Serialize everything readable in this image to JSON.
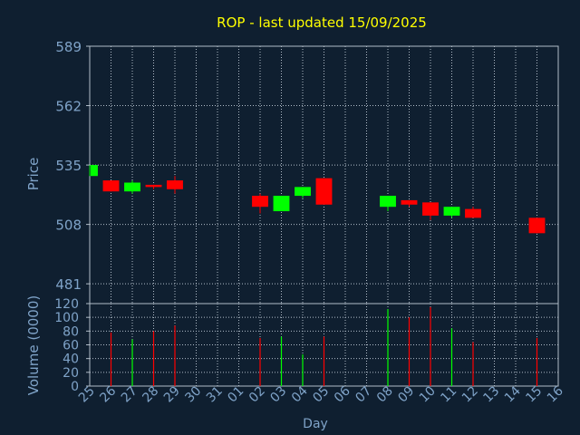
{
  "chart_data": [
    {
      "type": "candlestick",
      "title": "ROP - last updated 15/09/2025",
      "ylabel": "Price",
      "yticks": [
        481,
        508,
        535,
        562,
        589
      ],
      "ylim": [
        472,
        589
      ],
      "x": [
        "25",
        "26",
        "27",
        "28",
        "29",
        "30",
        "31",
        "01",
        "02",
        "03",
        "04",
        "05",
        "06",
        "07",
        "08",
        "09",
        "10",
        "11",
        "12",
        "13",
        "14",
        "15",
        "16"
      ],
      "candles": [
        {
          "x": "25",
          "open": 530,
          "close": 535,
          "high": 535,
          "low": 530
        },
        {
          "x": "26",
          "open": 528,
          "close": 523,
          "high": 528,
          "low": 523
        },
        {
          "x": "27",
          "open": 523,
          "close": 527,
          "high": 528,
          "low": 522
        },
        {
          "x": "28",
          "open": 526,
          "close": 525,
          "high": 526,
          "low": 524
        },
        {
          "x": "29",
          "open": 528,
          "close": 524,
          "high": 530,
          "low": 522
        },
        {
          "x": "02",
          "open": 521,
          "close": 516,
          "high": 522,
          "low": 513
        },
        {
          "x": "03",
          "open": 514,
          "close": 521,
          "high": 521,
          "low": 514
        },
        {
          "x": "04",
          "open": 521,
          "close": 525,
          "high": 525,
          "low": 520
        },
        {
          "x": "05",
          "open": 529,
          "close": 517,
          "high": 529,
          "low": 517
        },
        {
          "x": "08",
          "open": 516,
          "close": 521,
          "high": 521,
          "low": 514
        },
        {
          "x": "09",
          "open": 519,
          "close": 517,
          "high": 519,
          "low": 516
        },
        {
          "x": "10",
          "open": 518,
          "close": 512,
          "high": 518,
          "low": 510
        },
        {
          "x": "11",
          "open": 512,
          "close": 516,
          "high": 516,
          "low": 511
        },
        {
          "x": "12",
          "open": 515,
          "close": 511,
          "high": 516,
          "low": 511
        },
        {
          "x": "15",
          "open": 511,
          "close": 504,
          "high": 511,
          "low": 504
        }
      ]
    },
    {
      "type": "bar",
      "xlabel": "Day",
      "ylabel": "Volume (0000)",
      "yticks": [
        0,
        20,
        40,
        60,
        80,
        100,
        120
      ],
      "ylim": [
        0,
        120
      ],
      "categories": [
        "25",
        "26",
        "27",
        "28",
        "29",
        "30",
        "31",
        "01",
        "02",
        "03",
        "04",
        "05",
        "06",
        "07",
        "08",
        "09",
        "10",
        "11",
        "12",
        "13",
        "14",
        "15",
        "16"
      ],
      "bars": [
        {
          "x": "26",
          "value": 78,
          "color": "#ff0000"
        },
        {
          "x": "27",
          "value": 68,
          "color": "#00ff00"
        },
        {
          "x": "28",
          "value": 80,
          "color": "#ff0000"
        },
        {
          "x": "29",
          "value": 88,
          "color": "#ff0000"
        },
        {
          "x": "02",
          "value": 70,
          "color": "#ff0000"
        },
        {
          "x": "03",
          "value": 72,
          "color": "#00ff00"
        },
        {
          "x": "04",
          "value": 46,
          "color": "#00ff00"
        },
        {
          "x": "05",
          "value": 72,
          "color": "#ff0000"
        },
        {
          "x": "08",
          "value": 112,
          "color": "#00ff00"
        },
        {
          "x": "09",
          "value": 100,
          "color": "#ff0000"
        },
        {
          "x": "10",
          "value": 115,
          "color": "#ff0000"
        },
        {
          "x": "11",
          "value": 84,
          "color": "#00ff00"
        },
        {
          "x": "12",
          "value": 64,
          "color": "#ff0000"
        },
        {
          "x": "15",
          "value": 70,
          "color": "#ff0000"
        }
      ]
    }
  ],
  "colors": {
    "background": "#0f1f30",
    "text": "#7fa3c8",
    "title": "#ffff00",
    "up": "#00ff00",
    "down": "#ff0000",
    "grid": "#b0bcc8"
  }
}
